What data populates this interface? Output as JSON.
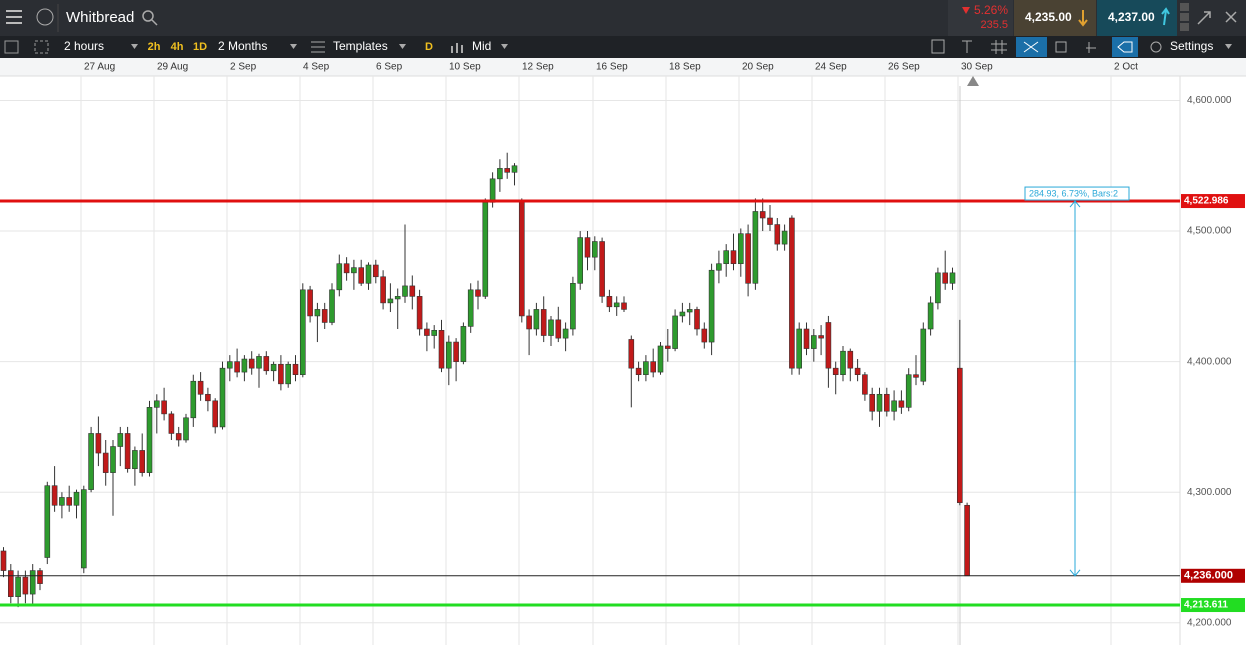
{
  "header": {
    "title": "Whitbread",
    "change_pct": "5.26%",
    "change": "235.5",
    "sell": "4,235.00",
    "buy": "4,237.00"
  },
  "toolbar": {
    "interval": "2 hours",
    "quick": [
      "2h",
      "4h",
      "1D"
    ],
    "range": "2 Months",
    "templates": "Templates",
    "day": "D",
    "price_type": "Mid",
    "settings": "Settings"
  },
  "chart_data": {
    "type": "candlestick",
    "xtick_labels": [
      "27 Aug",
      "29 Aug",
      "2 Sep",
      "4 Sep",
      "6 Sep",
      "10 Sep",
      "12 Sep",
      "16 Sep",
      "18 Sep",
      "20 Sep",
      "24 Sep",
      "26 Sep",
      "30 Sep",
      "2 Oct"
    ],
    "ylim": [
      4183,
      4631
    ],
    "yticks": [
      {
        "value": 4200,
        "label": "4,200.000"
      },
      {
        "value": 4300,
        "label": "4,300.000"
      },
      {
        "value": 4400,
        "label": "4,400.000"
      },
      {
        "value": 4500,
        "label": "4,500.000"
      },
      {
        "value": 4600,
        "label": "4,600.000"
      }
    ],
    "grid": true,
    "up_color": "#2e9b2e",
    "down_color": "#c11a1a",
    "candles": [
      [
        4255,
        4258,
        4235,
        4240
      ],
      [
        4240,
        4245,
        4215,
        4220
      ],
      [
        4220,
        4240,
        4212,
        4235
      ],
      [
        4235,
        4240,
        4215,
        4222
      ],
      [
        4222,
        4245,
        4214,
        4240
      ],
      [
        4240,
        4242,
        4225,
        4230
      ],
      [
        4250,
        4308,
        4245,
        4305
      ],
      [
        4305,
        4320,
        4285,
        4290
      ],
      [
        4290,
        4300,
        4280,
        4296
      ],
      [
        4296,
        4305,
        4285,
        4290
      ],
      [
        4290,
        4302,
        4280,
        4300
      ],
      [
        4242,
        4305,
        4238,
        4302
      ],
      [
        4302,
        4350,
        4300,
        4345
      ],
      [
        4345,
        4358,
        4320,
        4330
      ],
      [
        4330,
        4340,
        4305,
        4315
      ],
      [
        4315,
        4340,
        4282,
        4335
      ],
      [
        4335,
        4350,
        4320,
        4345
      ],
      [
        4345,
        4350,
        4315,
        4318
      ],
      [
        4318,
        4335,
        4305,
        4332
      ],
      [
        4332,
        4345,
        4312,
        4315
      ],
      [
        4315,
        4370,
        4312,
        4365
      ],
      [
        4365,
        4375,
        4345,
        4370
      ],
      [
        4370,
        4380,
        4355,
        4360
      ],
      [
        4360,
        4362,
        4340,
        4345
      ],
      [
        4345,
        4350,
        4335,
        4340
      ],
      [
        4340,
        4360,
        4338,
        4357
      ],
      [
        4357,
        4390,
        4350,
        4385
      ],
      [
        4385,
        4392,
        4370,
        4375
      ],
      [
        4375,
        4380,
        4362,
        4370
      ],
      [
        4370,
        4372,
        4345,
        4350
      ],
      [
        4350,
        4400,
        4348,
        4395
      ],
      [
        4395,
        4405,
        4385,
        4400
      ],
      [
        4400,
        4410,
        4388,
        4392
      ],
      [
        4392,
        4405,
        4385,
        4402
      ],
      [
        4402,
        4408,
        4390,
        4395
      ],
      [
        4395,
        4406,
        4380,
        4404
      ],
      [
        4404,
        4408,
        4390,
        4393
      ],
      [
        4393,
        4400,
        4385,
        4398
      ],
      [
        4398,
        4405,
        4378,
        4383
      ],
      [
        4383,
        4400,
        4380,
        4398
      ],
      [
        4398,
        4405,
        4385,
        4390
      ],
      [
        4390,
        4460,
        4388,
        4455
      ],
      [
        4455,
        4458,
        4430,
        4435
      ],
      [
        4435,
        4445,
        4415,
        4440
      ],
      [
        4440,
        4445,
        4425,
        4430
      ],
      [
        4430,
        4460,
        4428,
        4455
      ],
      [
        4455,
        4482,
        4450,
        4475
      ],
      [
        4475,
        4480,
        4462,
        4468
      ],
      [
        4468,
        4478,
        4455,
        4472
      ],
      [
        4472,
        4478,
        4458,
        4460
      ],
      [
        4460,
        4476,
        4455,
        4474
      ],
      [
        4474,
        4478,
        4460,
        4465
      ],
      [
        4465,
        4470,
        4440,
        4445
      ],
      [
        4445,
        4460,
        4438,
        4448
      ],
      [
        4448,
        4456,
        4425,
        4450
      ],
      [
        4450,
        4505,
        4445,
        4458
      ],
      [
        4458,
        4466,
        4440,
        4450
      ],
      [
        4450,
        4455,
        4420,
        4425
      ],
      [
        4425,
        4430,
        4408,
        4420
      ],
      [
        4420,
        4428,
        4410,
        4424
      ],
      [
        4424,
        4432,
        4392,
        4395
      ],
      [
        4395,
        4420,
        4382,
        4415
      ],
      [
        4415,
        4418,
        4385,
        4400
      ],
      [
        4400,
        4430,
        4398,
        4427
      ],
      [
        4427,
        4460,
        4422,
        4455
      ],
      [
        4455,
        4462,
        4440,
        4450
      ],
      [
        4450,
        4525,
        4448,
        4522
      ],
      [
        4522,
        4545,
        4518,
        4540
      ],
      [
        4540,
        4555,
        4530,
        4548
      ],
      [
        4548,
        4560,
        4540,
        4545
      ],
      [
        4545,
        4552,
        4535,
        4550
      ],
      [
        4523,
        4525,
        4430,
        4435
      ],
      [
        4435,
        4440,
        4405,
        4425
      ],
      [
        4425,
        4445,
        4420,
        4440
      ],
      [
        4440,
        4450,
        4415,
        4420
      ],
      [
        4420,
        4435,
        4412,
        4432
      ],
      [
        4432,
        4442,
        4415,
        4418
      ],
      [
        4418,
        4430,
        4408,
        4425
      ],
      [
        4425,
        4465,
        4420,
        4460
      ],
      [
        4460,
        4500,
        4455,
        4495
      ],
      [
        4495,
        4500,
        4470,
        4480
      ],
      [
        4480,
        4496,
        4470,
        4492
      ],
      [
        4492,
        4495,
        4445,
        4450
      ],
      [
        4450,
        4455,
        4438,
        4442
      ],
      [
        4442,
        4450,
        4435,
        4445
      ],
      [
        4445,
        4450,
        4438,
        4440
      ],
      [
        4417,
        4420,
        4365,
        4395
      ],
      [
        4395,
        4400,
        4385,
        4390
      ],
      [
        4390,
        4405,
        4385,
        4400
      ],
      [
        4400,
        4410,
        4388,
        4392
      ],
      [
        4392,
        4415,
        4390,
        4412
      ],
      [
        4412,
        4425,
        4400,
        4410
      ],
      [
        4410,
        4440,
        4408,
        4435
      ],
      [
        4435,
        4445,
        4430,
        4438
      ],
      [
        4438,
        4445,
        4428,
        4440
      ],
      [
        4440,
        4442,
        4420,
        4425
      ],
      [
        4425,
        4430,
        4410,
        4415
      ],
      [
        4415,
        4475,
        4405,
        4470
      ],
      [
        4470,
        4485,
        4460,
        4475
      ],
      [
        4475,
        4490,
        4465,
        4485
      ],
      [
        4485,
        4498,
        4470,
        4475
      ],
      [
        4475,
        4502,
        4465,
        4498
      ],
      [
        4498,
        4505,
        4450,
        4460
      ],
      [
        4460,
        4525,
        4455,
        4515
      ],
      [
        4515,
        4525,
        4500,
        4510
      ],
      [
        4510,
        4520,
        4500,
        4505
      ],
      [
        4505,
        4510,
        4485,
        4490
      ],
      [
        4490,
        4505,
        4485,
        4500
      ],
      [
        4510,
        4512,
        4390,
        4395
      ],
      [
        4395,
        4430,
        4390,
        4425
      ],
      [
        4425,
        4430,
        4405,
        4410
      ],
      [
        4410,
        4425,
        4400,
        4420
      ],
      [
        4420,
        4428,
        4405,
        4418
      ],
      [
        4430,
        4435,
        4380,
        4395
      ],
      [
        4395,
        4400,
        4375,
        4390
      ],
      [
        4390,
        4412,
        4385,
        4408
      ],
      [
        4408,
        4410,
        4385,
        4395
      ],
      [
        4395,
        4402,
        4385,
        4390
      ],
      [
        4390,
        4392,
        4370,
        4375
      ],
      [
        4375,
        4380,
        4355,
        4362
      ],
      [
        4362,
        4380,
        4350,
        4375
      ],
      [
        4375,
        4380,
        4358,
        4362
      ],
      [
        4362,
        4378,
        4355,
        4370
      ],
      [
        4370,
        4378,
        4360,
        4365
      ],
      [
        4365,
        4395,
        4362,
        4390
      ],
      [
        4390,
        4405,
        4382,
        4388
      ],
      [
        4385,
        4430,
        4382,
        4425
      ],
      [
        4425,
        4450,
        4420,
        4445
      ],
      [
        4445,
        4472,
        4440,
        4468
      ],
      [
        4468,
        4485,
        4455,
        4460
      ],
      [
        4460,
        4472,
        4455,
        4468
      ],
      [
        4395,
        4432,
        4290,
        4292
      ],
      [
        4290,
        4292,
        4236,
        4236
      ]
    ],
    "hlines": [
      {
        "value": 4522.986,
        "label": "4,522.986",
        "color": "#e01010"
      },
      {
        "value": 4236,
        "label": "4,236.000",
        "color": "#222222"
      },
      {
        "value": 4213.611,
        "label": "4,213.611",
        "color": "#22dd22"
      }
    ],
    "measure_label": "284.93, 6.73%, Bars:2"
  }
}
